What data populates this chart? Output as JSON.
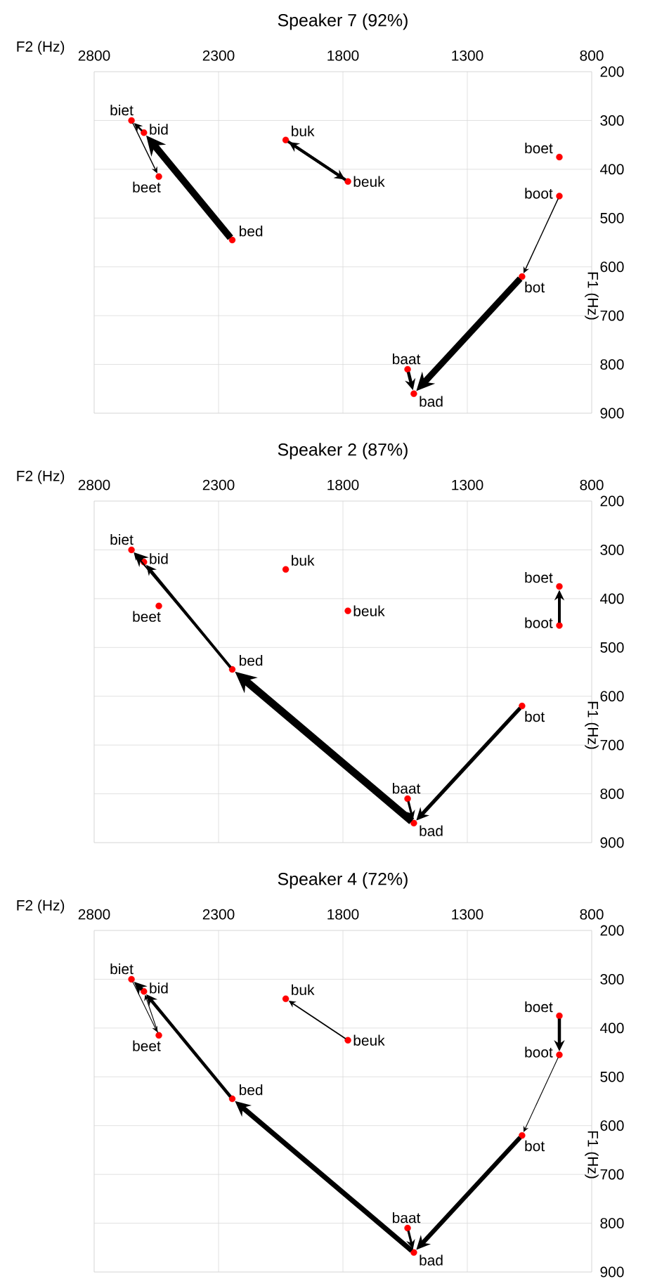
{
  "chart_data": [
    {
      "type": "scatter",
      "title": "Speaker 7 (92%)",
      "xlabel": "F2 (Hz)",
      "ylabel": "F1 (Hz)",
      "xlim": [
        2800,
        800
      ],
      "xticks": [
        2800,
        2300,
        1800,
        1300,
        800
      ],
      "ylim": [
        900,
        200
      ],
      "yticks": [
        200,
        300,
        400,
        500,
        600,
        700,
        800,
        900
      ],
      "grid": true,
      "marker": "circle",
      "series": [
        {
          "color": "#ff0000",
          "x": [
            2650,
            2600,
            2540,
            2245,
            2030,
            1780,
            930,
            930,
            1080,
            1540,
            1515
          ],
          "values": [
            300,
            325,
            415,
            545,
            340,
            425,
            375,
            455,
            620,
            810,
            860
          ]
        }
      ],
      "annotations": [
        {
          "text": "biet",
          "x": 2650,
          "y": 300
        },
        {
          "text": "bid",
          "x": 2600,
          "y": 325
        },
        {
          "text": "beet",
          "x": 2540,
          "y": 415
        },
        {
          "text": "bed",
          "x": 2245,
          "y": 545
        },
        {
          "text": "buk",
          "x": 2030,
          "y": 340
        },
        {
          "text": "beuk",
          "x": 1780,
          "y": 425
        },
        {
          "text": "boet",
          "x": 930,
          "y": 375
        },
        {
          "text": "boot",
          "x": 930,
          "y": 455
        },
        {
          "text": "bot",
          "x": 1080,
          "y": 620
        },
        {
          "text": "baat",
          "x": 1540,
          "y": 810
        },
        {
          "text": "bad",
          "x": 1515,
          "y": 860
        }
      ]
    },
    {
      "type": "scatter",
      "title": "Speaker 2 (87%)",
      "xlabel": "F2 (Hz)",
      "ylabel": "F1 (Hz)",
      "xlim": [
        2800,
        800
      ],
      "xticks": [
        2800,
        2300,
        1800,
        1300,
        800
      ],
      "ylim": [
        900,
        200
      ],
      "yticks": [
        200,
        300,
        400,
        500,
        600,
        700,
        800,
        900
      ],
      "grid": true,
      "marker": "circle",
      "series": [
        {
          "color": "#ff0000",
          "x": [
            2650,
            2600,
            2540,
            2245,
            2030,
            1780,
            930,
            930,
            1080,
            1540,
            1515
          ],
          "values": [
            300,
            325,
            415,
            545,
            340,
            425,
            375,
            455,
            620,
            810,
            860
          ]
        }
      ],
      "annotations": [
        {
          "text": "biet",
          "x": 2650,
          "y": 300
        },
        {
          "text": "bid",
          "x": 2600,
          "y": 325
        },
        {
          "text": "beet",
          "x": 2540,
          "y": 415
        },
        {
          "text": "bed",
          "x": 2245,
          "y": 545
        },
        {
          "text": "buk",
          "x": 2030,
          "y": 340
        },
        {
          "text": "beuk",
          "x": 1780,
          "y": 425
        },
        {
          "text": "boet",
          "x": 930,
          "y": 375
        },
        {
          "text": "boot",
          "x": 930,
          "y": 455
        },
        {
          "text": "bot",
          "x": 1080,
          "y": 620
        },
        {
          "text": "baat",
          "x": 1540,
          "y": 810
        },
        {
          "text": "bad",
          "x": 1515,
          "y": 860
        }
      ]
    },
    {
      "type": "scatter",
      "title": "Speaker 4 (72%)",
      "xlabel": "F2 (Hz)",
      "ylabel": "F1 (Hz)",
      "xlim": [
        2800,
        800
      ],
      "xticks": [
        2800,
        2300,
        1800,
        1300,
        800
      ],
      "ylim": [
        900,
        200
      ],
      "yticks": [
        200,
        300,
        400,
        500,
        600,
        700,
        800,
        900
      ],
      "grid": true,
      "marker": "circle",
      "series": [
        {
          "color": "#ff0000",
          "x": [
            2650,
            2600,
            2540,
            2245,
            2030,
            1780,
            930,
            930,
            1080,
            1540,
            1515
          ],
          "values": [
            300,
            325,
            415,
            545,
            340,
            425,
            375,
            455,
            620,
            810,
            860
          ]
        }
      ],
      "annotations": [
        {
          "text": "biet",
          "x": 2650,
          "y": 300
        },
        {
          "text": "bid",
          "x": 2600,
          "y": 325
        },
        {
          "text": "beet",
          "x": 2540,
          "y": 415
        },
        {
          "text": "bed",
          "x": 2245,
          "y": 545
        },
        {
          "text": "buk",
          "x": 2030,
          "y": 340
        },
        {
          "text": "beuk",
          "x": 1780,
          "y": 425
        },
        {
          "text": "boet",
          "x": 930,
          "y": 375
        },
        {
          "text": "boot",
          "x": 930,
          "y": 455
        },
        {
          "text": "bot",
          "x": 1080,
          "y": 620
        },
        {
          "text": "baat",
          "x": 1540,
          "y": 810
        },
        {
          "text": "bad",
          "x": 1515,
          "y": 860
        }
      ]
    }
  ]
}
